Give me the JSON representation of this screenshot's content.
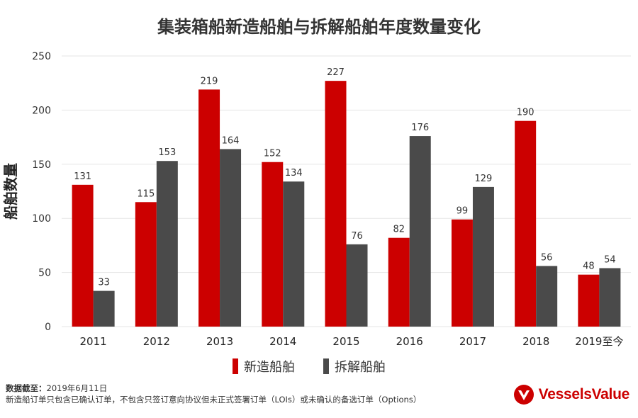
{
  "title": "集装箱船新造船舶与拆解船舶年度数量变化",
  "footer": {
    "date_label": "数据截至：",
    "date_value": "2019年6月11日",
    "note": "新造船订单只包含已确认订单，不包含只签订意向协议但未正式签署订单（LOIs）或未确认的备选订单（Options）"
  },
  "logo": {
    "text": "VesselsValue",
    "mark": "logo-icon"
  },
  "colors": {
    "new_build": "#cc0000",
    "demolition": "#4a4a4a",
    "grid": "#e6e6e6"
  },
  "chart_data": {
    "type": "bar",
    "title": "集装箱船新造船舶与拆解船舶年度数量变化",
    "xlabel": "",
    "ylabel": "船舶数量",
    "categories": [
      "2011",
      "2012",
      "2013",
      "2014",
      "2015",
      "2016",
      "2017",
      "2018",
      "2019至今"
    ],
    "series": [
      {
        "name": "新造船舶",
        "values": [
          131,
          115,
          219,
          152,
          227,
          82,
          99,
          190,
          48
        ]
      },
      {
        "name": "拆解船舶",
        "values": [
          33,
          153,
          164,
          134,
          76,
          176,
          129,
          56,
          54
        ]
      }
    ],
    "ylim": [
      0,
      250
    ],
    "yticks": [
      0,
      50,
      100,
      150,
      200,
      250
    ],
    "grid": true,
    "legend_position": "bottom"
  }
}
